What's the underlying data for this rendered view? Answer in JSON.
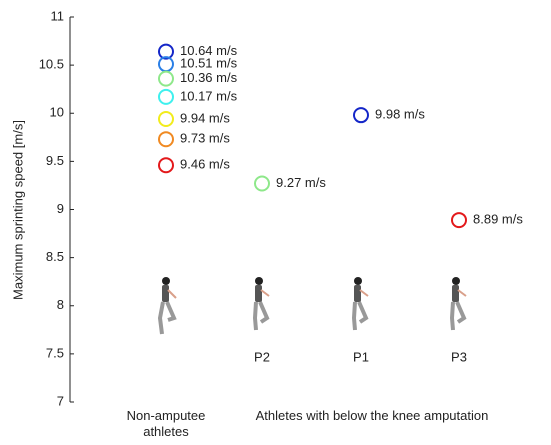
{
  "chart_data": {
    "type": "scatter",
    "y_label": "Maximum sprinting speed [m/s]",
    "categories": [
      null,
      "P2",
      "P1",
      "P3"
    ],
    "group_labels": [
      "Non-amputee athletes",
      "Athletes with below the knee amputation"
    ],
    "ylim": [
      7,
      11
    ],
    "yticks": [
      7,
      7.5,
      8,
      8.5,
      9,
      9.5,
      10,
      10.5,
      11
    ],
    "points": [
      {
        "category": 0,
        "value": 10.64,
        "value_label": "10.64 m/s",
        "color": "#1426c8"
      },
      {
        "category": 0,
        "value": 10.51,
        "value_label": "10.51 m/s",
        "color": "#2a7fe6"
      },
      {
        "category": 0,
        "value": 10.36,
        "value_label": "10.36 m/s",
        "color": "#8ee88a"
      },
      {
        "category": 0,
        "value": 10.17,
        "value_label": "10.17 m/s",
        "color": "#3ff0ee"
      },
      {
        "category": 0,
        "value": 9.94,
        "value_label": "9.94 m/s",
        "color": "#f2ec1c"
      },
      {
        "category": 0,
        "value": 9.73,
        "value_label": "9.73 m/s",
        "color": "#f08a22"
      },
      {
        "category": 0,
        "value": 9.46,
        "value_label": "9.46 m/s",
        "color": "#e3191b"
      },
      {
        "category": 1,
        "value": 9.27,
        "value_label": "9.27 m/s",
        "color": "#8ee88a"
      },
      {
        "category": 2,
        "value": 9.98,
        "value_label": "9.98 m/s",
        "color": "#1426c8"
      },
      {
        "category": 3,
        "value": 8.89,
        "value_label": "8.89 m/s",
        "color": "#e3191b"
      }
    ]
  }
}
